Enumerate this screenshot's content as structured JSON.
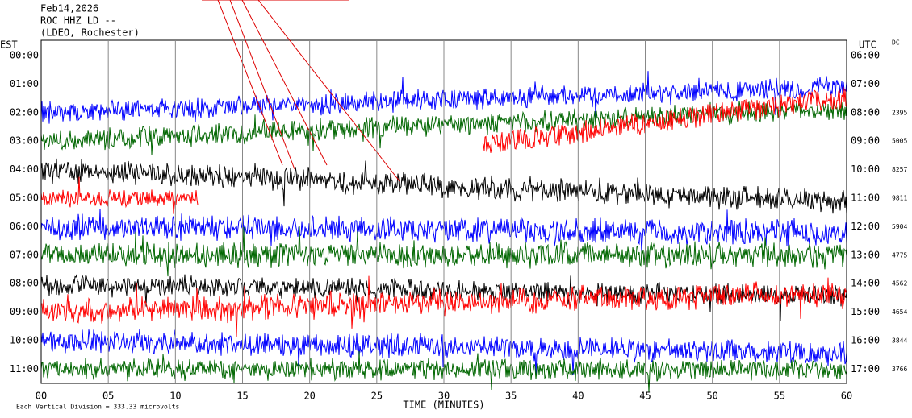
{
  "header": {
    "date": "Feb14,2026",
    "station": "ROC HHZ LD --",
    "location": "(LDEO, Rochester)"
  },
  "left_axis": {
    "title": "EST",
    "labels": [
      "00:00",
      "01:00",
      "02:00",
      "03:00",
      "04:00",
      "05:00",
      "06:00",
      "07:00",
      "08:00",
      "09:00",
      "10:00",
      "11:00"
    ]
  },
  "right_axis": {
    "title": "UTC",
    "labels": [
      "06:00",
      "07:00",
      "08:00",
      "09:00",
      "10:00",
      "11:00",
      "12:00",
      "13:00",
      "14:00",
      "15:00",
      "16:00",
      "17:00"
    ]
  },
  "dc": {
    "title": "DC",
    "values": [
      null,
      null,
      "2395",
      "5005",
      "8257",
      "9811",
      "5904",
      "4775",
      "4562",
      "4654",
      "3844",
      "3766"
    ]
  },
  "x_axis": {
    "title": "TIME (MINUTES)",
    "labels": [
      "00",
      "05",
      "10",
      "15",
      "20",
      "25",
      "30",
      "35",
      "40",
      "45",
      "50",
      "55",
      "60"
    ]
  },
  "footer": "Each Vertical Division =  333.33 microvolts",
  "trace_colors": [
    "#000000",
    "#ff0000",
    "#0000ff",
    "#006600"
  ]
}
